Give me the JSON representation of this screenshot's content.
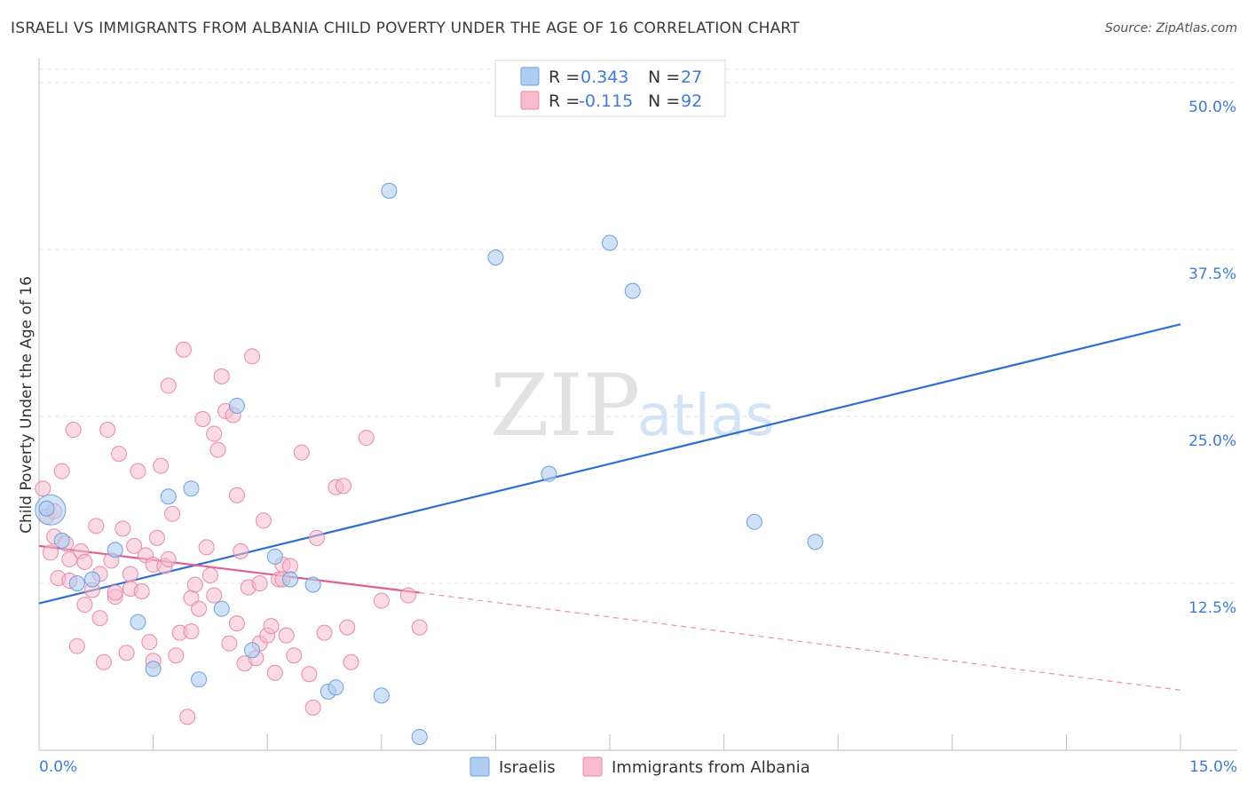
{
  "header": {
    "title": "ISRAELI VS IMMIGRANTS FROM ALBANIA CHILD POVERTY UNDER THE AGE OF 16 CORRELATION CHART",
    "source": "Source: ZipAtlas.com"
  },
  "watermark": {
    "zip": "ZIP",
    "atlas": "atlas"
  },
  "colors": {
    "blue_fill": "#aecdf0",
    "blue_stroke": "#6e9fdc",
    "blue_line": "#2f6fcf",
    "pink_fill": "#f6bccd",
    "pink_stroke": "#e889a8",
    "pink_line": "#e0608e",
    "accent_text": "#3f7bd6",
    "grid": "#e6e6e6"
  },
  "legend": {
    "rows": [
      {
        "r_label": "R = ",
        "r_value": "0.343",
        "n_label": "N = ",
        "n_value": "27",
        "series": "blue"
      },
      {
        "r_label": "R = ",
        "r_value": "-0.115",
        "n_label": "N = ",
        "n_value": "92",
        "series": "pink"
      }
    ]
  },
  "bottom_legend": {
    "israelis": "Israelis",
    "albania": "Immigrants from Albania"
  },
  "chart_data": {
    "type": "scatter",
    "title": "ISRAELI VS IMMIGRANTS FROM ALBANIA CHILD POVERTY UNDER THE AGE OF 16 CORRELATION CHART",
    "xlabel": "",
    "ylabel": "Child Poverty Under the Age of 16",
    "xlim": [
      0,
      15
    ],
    "ylim": [
      0,
      50
    ],
    "x_tick_labels": [
      "0.0%",
      "15.0%"
    ],
    "y_ticks": [
      12.5,
      25.0,
      37.5,
      50.0
    ],
    "y_tick_labels": [
      "12.5%",
      "25.0%",
      "37.5%",
      "50.0%"
    ],
    "grid": true,
    "legend_position": "top-center",
    "series": [
      {
        "name": "Israelis",
        "r": 0.343,
        "n": 27,
        "trend": {
          "x": [
            0,
            15
          ],
          "y": [
            11.0,
            31.9
          ]
        },
        "points": [
          [
            0.1,
            18.1
          ],
          [
            0.3,
            15.7
          ],
          [
            0.5,
            12.5
          ],
          [
            0.7,
            12.8
          ],
          [
            1.0,
            15.0
          ],
          [
            1.3,
            9.6
          ],
          [
            1.5,
            6.1
          ],
          [
            1.7,
            19.0
          ],
          [
            2.0,
            19.6
          ],
          [
            2.1,
            5.3
          ],
          [
            2.4,
            10.6
          ],
          [
            2.6,
            25.8
          ],
          [
            2.8,
            7.5
          ],
          [
            3.1,
            14.5
          ],
          [
            3.3,
            12.8
          ],
          [
            3.6,
            12.4
          ],
          [
            3.8,
            4.4
          ],
          [
            3.9,
            4.7
          ],
          [
            4.5,
            4.1
          ],
          [
            4.6,
            41.9
          ],
          [
            5.0,
            1.0
          ],
          [
            6.0,
            36.9
          ],
          [
            6.7,
            20.7
          ],
          [
            7.5,
            38.0
          ],
          [
            7.8,
            34.4
          ],
          [
            9.4,
            17.1
          ],
          [
            10.2,
            15.6
          ]
        ],
        "large_point": [
          0.15,
          18.0
        ]
      },
      {
        "name": "Immigrants from Albania",
        "r": -0.115,
        "n": 92,
        "trend": {
          "x": [
            0,
            5.0
          ],
          "y": [
            15.3,
            11.8
          ]
        },
        "trend_dashed": {
          "x": [
            5.0,
            15
          ],
          "y": [
            11.8,
            4.5
          ]
        },
        "points": [
          [
            0.05,
            19.6
          ],
          [
            0.1,
            17.5
          ],
          [
            0.15,
            14.8
          ],
          [
            0.2,
            16.0
          ],
          [
            0.25,
            12.9
          ],
          [
            0.3,
            20.9
          ],
          [
            0.35,
            15.5
          ],
          [
            0.4,
            14.3
          ],
          [
            0.45,
            24.0
          ],
          [
            0.5,
            7.8
          ],
          [
            0.55,
            14.9
          ],
          [
            0.6,
            10.9
          ],
          [
            0.7,
            12.0
          ],
          [
            0.75,
            16.8
          ],
          [
            0.8,
            13.2
          ],
          [
            0.85,
            6.6
          ],
          [
            0.9,
            24.0
          ],
          [
            0.95,
            14.2
          ],
          [
            1.0,
            11.5
          ],
          [
            1.05,
            22.2
          ],
          [
            1.1,
            16.6
          ],
          [
            1.15,
            7.3
          ],
          [
            1.2,
            12.1
          ],
          [
            1.25,
            15.3
          ],
          [
            1.3,
            20.9
          ],
          [
            1.35,
            11.9
          ],
          [
            1.4,
            14.6
          ],
          [
            1.45,
            8.1
          ],
          [
            1.5,
            13.9
          ],
          [
            1.55,
            15.9
          ],
          [
            1.6,
            21.3
          ],
          [
            1.65,
            13.8
          ],
          [
            1.7,
            27.3
          ],
          [
            1.75,
            17.7
          ],
          [
            1.8,
            7.1
          ],
          [
            1.85,
            8.8
          ],
          [
            1.9,
            30.0
          ],
          [
            1.95,
            2.5
          ],
          [
            2.0,
            11.4
          ],
          [
            2.05,
            12.4
          ],
          [
            2.1,
            10.6
          ],
          [
            2.15,
            24.8
          ],
          [
            2.2,
            15.2
          ],
          [
            2.25,
            13.1
          ],
          [
            2.3,
            23.7
          ],
          [
            2.35,
            22.5
          ],
          [
            2.4,
            28.0
          ],
          [
            2.45,
            25.4
          ],
          [
            2.5,
            8.0
          ],
          [
            2.55,
            25.1
          ],
          [
            2.6,
            19.1
          ],
          [
            2.65,
            14.9
          ],
          [
            2.7,
            6.5
          ],
          [
            2.75,
            12.2
          ],
          [
            2.8,
            29.5
          ],
          [
            2.85,
            6.9
          ],
          [
            2.9,
            8.0
          ],
          [
            2.95,
            17.2
          ],
          [
            3.0,
            8.6
          ],
          [
            3.05,
            9.3
          ],
          [
            3.1,
            5.8
          ],
          [
            3.15,
            12.8
          ],
          [
            3.2,
            13.9
          ],
          [
            3.25,
            8.6
          ],
          [
            3.3,
            13.8
          ],
          [
            3.35,
            7.1
          ],
          [
            3.45,
            22.3
          ],
          [
            3.55,
            5.7
          ],
          [
            3.6,
            3.2
          ],
          [
            3.65,
            15.9
          ],
          [
            3.75,
            8.8
          ],
          [
            3.9,
            19.7
          ],
          [
            4.0,
            19.8
          ],
          [
            4.05,
            9.2
          ],
          [
            4.1,
            6.6
          ],
          [
            4.3,
            23.4
          ],
          [
            4.85,
            11.6
          ],
          [
            5.0,
            9.2
          ],
          [
            0.2,
            17.9
          ],
          [
            0.4,
            12.7
          ],
          [
            0.6,
            14.1
          ],
          [
            1.0,
            11.8
          ],
          [
            1.2,
            13.2
          ],
          [
            1.5,
            6.7
          ],
          [
            2.0,
            8.9
          ],
          [
            2.3,
            11.6
          ],
          [
            2.6,
            9.5
          ],
          [
            2.9,
            12.5
          ],
          [
            1.7,
            14.3
          ],
          [
            0.8,
            9.9
          ],
          [
            3.2,
            12.8
          ],
          [
            4.5,
            11.2
          ]
        ]
      }
    ]
  }
}
